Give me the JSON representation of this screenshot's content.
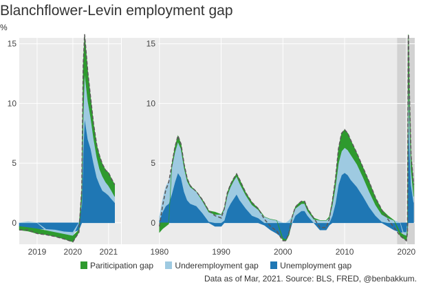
{
  "title": "Blanchflower-Levin employment gap",
  "unit_label": "%",
  "legend": [
    {
      "label": "Pariticipation gap",
      "color": "#2e9a2e"
    },
    {
      "label": "Underemployment gap",
      "color": "#9ecae1"
    },
    {
      "label": "Unemployment gap",
      "color": "#1f77b4"
    }
  ],
  "source_note": "Data as of Mar, 2021. Source: BLS, FRED, @benbakkum.",
  "colors": {
    "participation": "#2e9a2e",
    "underemployment": "#9ecae1",
    "unemployment": "#1f77b4",
    "total_line": "#5a5a5a",
    "panel_bg": "#ebebeb",
    "zoom_highlight": "#d2d2d2"
  },
  "chart_data": [
    {
      "type": "area",
      "panel": "zoom",
      "x_unit": "year",
      "xlim": [
        2018.5,
        2021.35
      ],
      "ylim": [
        -1.8,
        15.5
      ],
      "x_ticks": [
        2019,
        2020,
        2021
      ],
      "y_ticks": [
        0,
        5,
        10,
        15
      ],
      "grid": true,
      "x": [
        2018.5,
        2018.75,
        2019.0,
        2019.25,
        2019.5,
        2019.75,
        2020.0,
        2020.17,
        2020.25,
        2020.29,
        2020.33,
        2020.42,
        2020.5,
        2020.58,
        2020.67,
        2020.75,
        2020.83,
        2020.92,
        2021.0,
        2021.08,
        2021.17
      ],
      "series": [
        {
          "name": "Unemployment gap",
          "values": [
            -0.3,
            -0.4,
            -0.5,
            -0.55,
            -0.6,
            -0.75,
            -0.8,
            -0.6,
            1.5,
            6.0,
            8.8,
            7.0,
            6.2,
            5.0,
            3.8,
            3.2,
            2.7,
            2.5,
            2.3,
            2.0,
            1.7
          ]
        },
        {
          "name": "Underemployment gap",
          "values": [
            0.0,
            0.1,
            0.0,
            -0.1,
            -0.2,
            -0.2,
            -0.3,
            0.0,
            0.5,
            3.0,
            3.8,
            3.2,
            2.6,
            2.1,
            1.7,
            1.3,
            1.2,
            0.9,
            0.8,
            0.7,
            0.5
          ]
        },
        {
          "name": "Pariticipation gap",
          "values": [
            -0.3,
            -0.3,
            -0.4,
            -0.35,
            -0.35,
            -0.4,
            -0.5,
            -0.2,
            0.8,
            4.2,
            3.2,
            2.4,
            1.6,
            1.2,
            1.0,
            1.1,
            1.0,
            1.0,
            1.1,
            1.0,
            1.0
          ]
        }
      ]
    },
    {
      "type": "area",
      "panel": "full",
      "x_unit": "year",
      "xlim": [
        1979.8,
        2021.35
      ],
      "ylim": [
        -1.8,
        15.5
      ],
      "x_ticks": [
        1980,
        1990,
        2000,
        2010,
        2020
      ],
      "y_ticks": [
        0,
        5,
        10,
        15
      ],
      "grid": true,
      "highlight_range": [
        2018.5,
        2021.35
      ],
      "x": [
        1980.0,
        1980.5,
        1981.0,
        1981.5,
        1982.0,
        1982.5,
        1983.0,
        1983.5,
        1984.0,
        1984.5,
        1985.0,
        1986.0,
        1987.0,
        1988.0,
        1989.0,
        1990.0,
        1990.5,
        1991.0,
        1991.5,
        1992.0,
        1992.5,
        1993.0,
        1994.0,
        1995.0,
        1996.0,
        1997.0,
        1998.0,
        1999.0,
        2000.0,
        2000.5,
        2001.0,
        2001.5,
        2002.0,
        2002.5,
        2003.0,
        2003.5,
        2004.0,
        2005.0,
        2006.0,
        2007.0,
        2007.5,
        2008.0,
        2008.5,
        2009.0,
        2009.5,
        2010.0,
        2010.5,
        2011.0,
        2012.0,
        2013.0,
        2014.0,
        2015.0,
        2016.0,
        2017.0,
        2018.0,
        2019.0,
        2019.5,
        2020.0,
        2020.17,
        2020.29,
        2020.33,
        2020.5,
        2020.75,
        2021.0,
        2021.17
      ],
      "series": [
        {
          "name": "Unemployment gap",
          "values": [
            0.2,
            0.9,
            1.4,
            1.6,
            2.4,
            3.4,
            4.2,
            3.8,
            2.6,
            1.9,
            1.6,
            1.4,
            0.8,
            0.1,
            -0.3,
            -0.3,
            0.2,
            1.1,
            1.6,
            2.0,
            2.4,
            1.9,
            1.2,
            0.6,
            0.4,
            -0.2,
            -0.6,
            -0.9,
            -1.3,
            -1.4,
            -0.9,
            0.0,
            0.6,
            0.8,
            1.0,
            1.0,
            0.6,
            0.0,
            -0.6,
            -0.6,
            -0.2,
            0.6,
            1.6,
            3.2,
            4.0,
            4.2,
            4.0,
            3.6,
            3.0,
            2.2,
            1.3,
            0.6,
            0.1,
            -0.3,
            -0.6,
            -0.8,
            -0.8,
            -0.8,
            -0.6,
            6.0,
            8.8,
            6.2,
            3.2,
            2.3,
            1.7
          ]
        },
        {
          "name": "Underemployment gap",
          "values": [
            0.3,
            1.0,
            1.6,
            1.9,
            2.2,
            2.5,
            2.6,
            2.4,
            2.0,
            1.6,
            1.4,
            1.2,
            1.0,
            0.8,
            0.7,
            0.7,
            0.9,
            1.2,
            1.4,
            1.5,
            1.5,
            1.4,
            1.1,
            0.9,
            0.7,
            0.5,
            0.3,
            0.2,
            0.0,
            0.0,
            0.2,
            0.5,
            0.6,
            0.6,
            0.6,
            0.6,
            0.4,
            0.3,
            0.2,
            0.2,
            0.4,
            0.9,
            1.4,
            1.8,
            2.0,
            2.1,
            2.1,
            2.1,
            1.9,
            1.6,
            1.3,
            0.9,
            0.6,
            0.4,
            0.2,
            0.0,
            -0.2,
            -0.3,
            0.0,
            3.0,
            3.8,
            2.6,
            1.3,
            0.8,
            0.5
          ]
        },
        {
          "name": "Pariticipation gap",
          "values": [
            -0.8,
            -0.5,
            -0.3,
            -0.1,
            0.2,
            0.4,
            0.5,
            0.4,
            0.3,
            0.2,
            0.1,
            0.0,
            0.1,
            0.1,
            0.2,
            0.0,
            0.1,
            0.2,
            0.2,
            0.2,
            0.2,
            0.3,
            0.2,
            0.2,
            0.1,
            0.0,
            0.0,
            0.0,
            -0.2,
            -0.1,
            -0.1,
            0.0,
            0.1,
            0.2,
            0.2,
            0.2,
            0.2,
            0.1,
            0.0,
            0.0,
            0.1,
            0.3,
            0.6,
            1.2,
            1.5,
            1.5,
            1.4,
            1.2,
            0.9,
            0.8,
            0.8,
            0.6,
            0.4,
            0.2,
            0.0,
            -0.3,
            -0.3,
            -0.4,
            -0.2,
            4.2,
            3.2,
            1.6,
            1.1,
            1.1,
            1.0
          ]
        }
      ]
    }
  ]
}
